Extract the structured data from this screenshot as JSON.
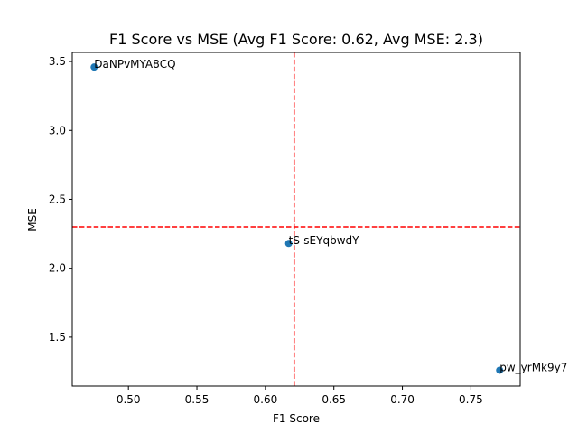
{
  "chart_data": {
    "type": "scatter",
    "title": "F1 Score vs MSE (Avg F1 Score: 0.62, Avg MSE: 2.3)",
    "xlabel": "F1 Score",
    "ylabel": "MSE",
    "xlim": [
      0.459,
      0.786
    ],
    "ylim": [
      1.145,
      3.566
    ],
    "xticks": [
      0.5,
      0.55,
      0.6,
      0.65,
      0.7,
      0.75
    ],
    "yticks": [
      1.5,
      2.0,
      2.5,
      3.0,
      3.5
    ],
    "points": [
      {
        "label": "DaNPvMYA8CQ",
        "x": 0.475,
        "y": 3.46
      },
      {
        "label": "tS-sEYqbwdY",
        "x": 0.617,
        "y": 2.18
      },
      {
        "label": "pw_yrMk9y7",
        "x": 0.771,
        "y": 1.26
      }
    ],
    "avg_x": 0.621,
    "avg_y": 2.3,
    "grid": false,
    "colors": {
      "points": "#1f77b4",
      "reference_lines": "#ff0000"
    }
  }
}
